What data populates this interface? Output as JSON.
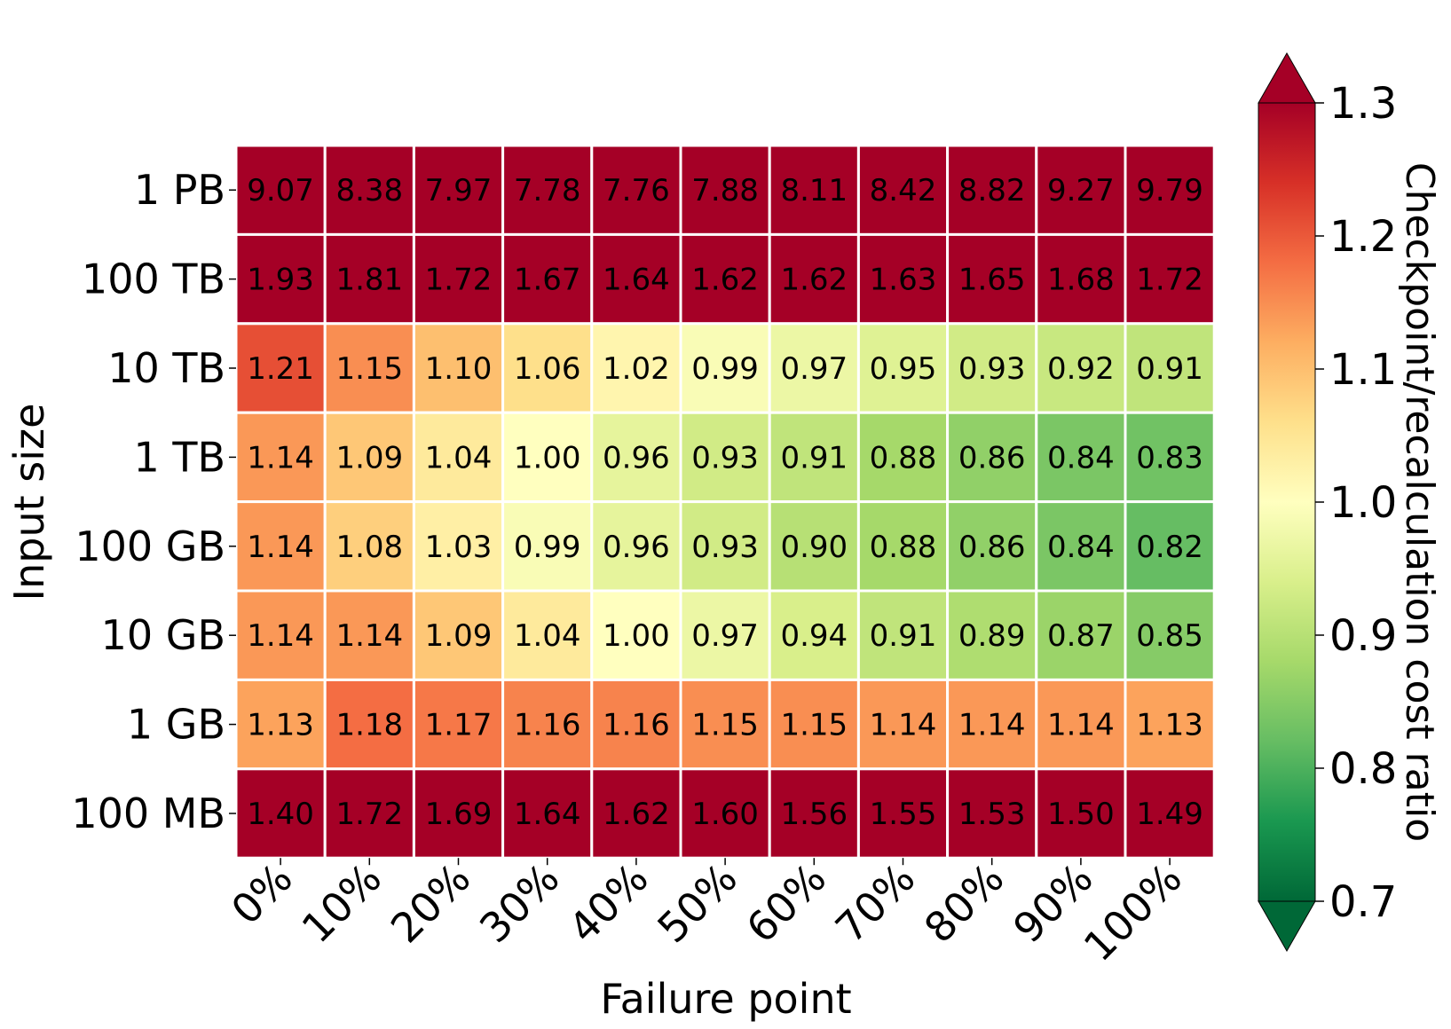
{
  "chart_data": {
    "type": "heatmap",
    "xlabel": "Failure point",
    "ylabel": "Input size",
    "x_categories": [
      "0%",
      "10%",
      "20%",
      "30%",
      "40%",
      "50%",
      "60%",
      "70%",
      "80%",
      "90%",
      "100%"
    ],
    "y_categories": [
      "1 PB",
      "100 TB",
      "10 TB",
      "1 TB",
      "100 GB",
      "10 GB",
      "1 GB",
      "100 MB"
    ],
    "values": [
      [
        9.07,
        8.38,
        7.97,
        7.78,
        7.76,
        7.88,
        8.11,
        8.42,
        8.82,
        9.27,
        9.79
      ],
      [
        1.93,
        1.81,
        1.72,
        1.67,
        1.64,
        1.62,
        1.62,
        1.63,
        1.65,
        1.68,
        1.72
      ],
      [
        1.21,
        1.15,
        1.1,
        1.06,
        1.02,
        0.99,
        0.97,
        0.95,
        0.93,
        0.92,
        0.91
      ],
      [
        1.14,
        1.09,
        1.04,
        1.0,
        0.96,
        0.93,
        0.91,
        0.88,
        0.86,
        0.84,
        0.83
      ],
      [
        1.14,
        1.08,
        1.03,
        0.99,
        0.96,
        0.93,
        0.9,
        0.88,
        0.86,
        0.84,
        0.82
      ],
      [
        1.14,
        1.14,
        1.09,
        1.04,
        1.0,
        0.97,
        0.94,
        0.91,
        0.89,
        0.87,
        0.85
      ],
      [
        1.13,
        1.18,
        1.17,
        1.16,
        1.16,
        1.15,
        1.15,
        1.14,
        1.14,
        1.14,
        1.13
      ],
      [
        1.4,
        1.72,
        1.69,
        1.64,
        1.62,
        1.6,
        1.56,
        1.55,
        1.53,
        1.5,
        1.49
      ]
    ],
    "colorbar": {
      "label": "Checkpoint/recalculation cost ratio",
      "min": 0.7,
      "max": 1.3,
      "ticks": [
        "0.7",
        "0.8",
        "0.9",
        "1.0",
        "1.1",
        "1.2",
        "1.3"
      ],
      "colormap": "RdYlGn_r",
      "extend": "both"
    },
    "grid": false
  }
}
